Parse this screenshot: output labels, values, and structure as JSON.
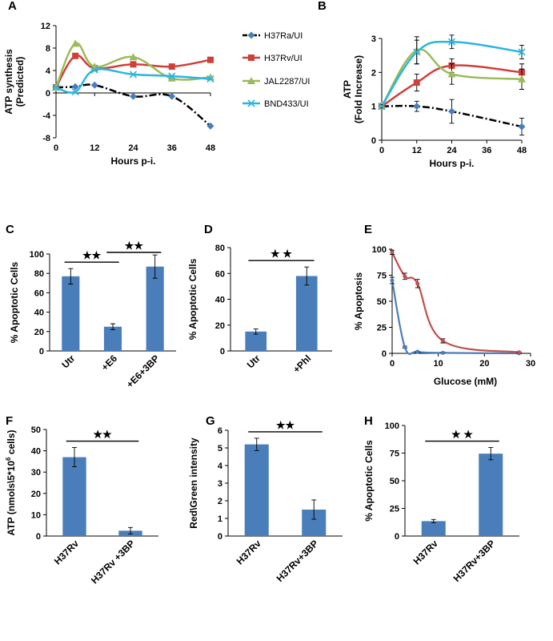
{
  "colors": {
    "H37Ra": "#4a7ebb",
    "H37Rv": "#d0403a",
    "JAL2287": "#9bbb59",
    "BND433": "#2cb5e0",
    "bar": "#4a7ebb",
    "redline": "#c0504d",
    "black": "#000000"
  },
  "legend": {
    "entries": [
      {
        "key": "H37Ra",
        "label": "H37Ra/UI",
        "marker": "diamond",
        "dash": "dashdot"
      },
      {
        "key": "H37Rv",
        "label": "H37Rv/UI",
        "marker": "square"
      },
      {
        "key": "JAL2287",
        "label": "JAL2287/UI",
        "marker": "triangle"
      },
      {
        "key": "BND433",
        "label": "BND433/UI",
        "marker": "x"
      }
    ]
  },
  "chart_data": [
    {
      "panel": "A",
      "type": "line",
      "smooth": true,
      "ylabel": "ATP synthesis (Predicted)",
      "ylabel_lines": [
        "ATP synthesis",
        "(Predicted)"
      ],
      "xlabel": "Hours p-i.",
      "xlim": [
        0,
        48
      ],
      "ylim": [
        -8,
        12
      ],
      "xticks": [
        0,
        12,
        24,
        36,
        48
      ],
      "yticks": [
        -8,
        -4,
        0,
        4,
        8,
        12
      ],
      "series": [
        {
          "key": "H37Ra",
          "x": [
            0,
            6,
            12,
            24,
            36,
            48
          ],
          "y": [
            1,
            1.1,
            1.4,
            -0.6,
            -0.6,
            -5.9
          ]
        },
        {
          "key": "H37Rv",
          "x": [
            0,
            6,
            12,
            24,
            36,
            48
          ],
          "y": [
            1,
            6.6,
            4.4,
            5.1,
            4.7,
            5.9
          ]
        },
        {
          "key": "JAL2287",
          "x": [
            0,
            6,
            12,
            24,
            36,
            48
          ],
          "y": [
            1,
            8.8,
            4.7,
            6.4,
            2.6,
            2.8
          ]
        },
        {
          "key": "BND433",
          "x": [
            0,
            6,
            12,
            24,
            36,
            48
          ],
          "y": [
            1,
            0.2,
            4.1,
            3.3,
            3.0,
            2.5
          ]
        }
      ]
    },
    {
      "panel": "B",
      "type": "line",
      "smooth": true,
      "ylabel": "ATP (Fold Increase)",
      "ylabel_lines": [
        "ATP",
        "(Fold Increase)"
      ],
      "xlabel": "Hours p-i.",
      "xlim": [
        0,
        48
      ],
      "ylim": [
        0,
        3
      ],
      "xticks": [
        0,
        12,
        24,
        36,
        48
      ],
      "yticks": [
        0,
        1,
        2,
        3
      ],
      "series": [
        {
          "key": "H37Ra",
          "x": [
            0,
            12,
            24,
            48
          ],
          "y": [
            1,
            1.0,
            0.85,
            0.4
          ],
          "err": [
            0.05,
            0.15,
            0.35,
            0.25
          ]
        },
        {
          "key": "H37Rv",
          "x": [
            0,
            12,
            24,
            48
          ],
          "y": [
            1,
            1.7,
            2.2,
            2.0
          ],
          "err": [
            0.05,
            0.25,
            0.2,
            0.25
          ]
        },
        {
          "key": "JAL2287",
          "x": [
            0,
            12,
            24,
            48
          ],
          "y": [
            1,
            2.65,
            1.95,
            1.8
          ],
          "err": [
            0.05,
            0.4,
            0.3,
            0.3
          ]
        },
        {
          "key": "BND433",
          "x": [
            0,
            12,
            24,
            48
          ],
          "y": [
            1,
            2.6,
            2.9,
            2.6
          ],
          "err": [
            0.05,
            0.35,
            0.2,
            0.2
          ]
        }
      ]
    },
    {
      "panel": "C",
      "type": "bar",
      "ylabel": "% Apoptotic Cells",
      "categories": [
        "Utr",
        "+E6",
        "+E6+3BP"
      ],
      "values": [
        77,
        25,
        87
      ],
      "err": [
        8,
        3,
        12
      ],
      "ylim": [
        0,
        100
      ],
      "yticks": [
        0,
        20,
        40,
        60,
        80,
        100
      ],
      "sig": [
        {
          "from": 0,
          "to": 1,
          "label": "★★"
        },
        {
          "from": 1,
          "to": 2,
          "label": "★★"
        }
      ]
    },
    {
      "panel": "D",
      "type": "bar",
      "ylabel": "% Apoptotic Cells",
      "categories": [
        "Utr",
        "+Phl"
      ],
      "values": [
        15,
        58
      ],
      "err": [
        2,
        7
      ],
      "ylim": [
        0,
        80
      ],
      "yticks": [
        0,
        20,
        40,
        60,
        80
      ],
      "sig": [
        {
          "from": 0,
          "to": 1,
          "label": "★ ★"
        }
      ]
    },
    {
      "panel": "E",
      "type": "line",
      "smooth": true,
      "ylabel": "% Apoptosis",
      "xlabel": "Glucose (mM)",
      "xlim": [
        0,
        30
      ],
      "ylim": [
        0,
        100
      ],
      "xticks": [
        0,
        10,
        20,
        30
      ],
      "yticks": [
        0,
        25,
        50,
        75,
        100
      ],
      "series": [
        {
          "key": "blue",
          "color": "#4a7ebb",
          "x": [
            0,
            2.75,
            5.5,
            11,
            27.5
          ],
          "y": [
            70,
            6,
            1.5,
            0.5,
            0
          ],
          "err": [
            3,
            1,
            0.5,
            0.3,
            0.3
          ]
        },
        {
          "key": "red",
          "color": "#c0504d",
          "x": [
            0,
            2.75,
            5.5,
            11,
            27.5
          ],
          "y": [
            97,
            74,
            67,
            12,
            1
          ],
          "err": [
            2,
            3,
            4,
            2,
            0.5
          ]
        }
      ]
    },
    {
      "panel": "F",
      "type": "bar",
      "ylabel": "ATP (nmols/5*10⁶ cells)",
      "ylabel_parts": [
        "ATP  (nmols\\5*10",
        "6",
        " cells)"
      ],
      "categories": [
        "H37Rv",
        "H37Rv +3BP"
      ],
      "values": [
        37,
        2.5
      ],
      "err": [
        4.5,
        1.5
      ],
      "ylim": [
        0,
        50
      ],
      "yticks": [
        0,
        10,
        20,
        30,
        40,
        50
      ],
      "sig": [
        {
          "from": 0,
          "to": 1,
          "label": "★★"
        }
      ]
    },
    {
      "panel": "G",
      "type": "bar",
      "ylabel": "Red\\Green intensity",
      "categories": [
        "H37Rv",
        "H37Rv+3BP"
      ],
      "values": [
        5.2,
        1.5
      ],
      "err": [
        0.35,
        0.55
      ],
      "ylim": [
        0,
        6
      ],
      "yticks": [
        0,
        1,
        2,
        3,
        4,
        5,
        6
      ],
      "sig": [
        {
          "from": 0,
          "to": 1,
          "label": "★★"
        }
      ]
    },
    {
      "panel": "H",
      "type": "bar",
      "ylabel": "% Apoptotic Cells",
      "categories": [
        "H37Rv",
        "H37Rv+3BP"
      ],
      "values": [
        13.5,
        74.5
      ],
      "err": [
        1.5,
        5.5
      ],
      "ylim": [
        0,
        100
      ],
      "yticks": [
        0,
        25,
        50,
        75,
        100
      ],
      "sig": [
        {
          "from": 0,
          "to": 1,
          "label": "★ ★"
        }
      ]
    }
  ]
}
